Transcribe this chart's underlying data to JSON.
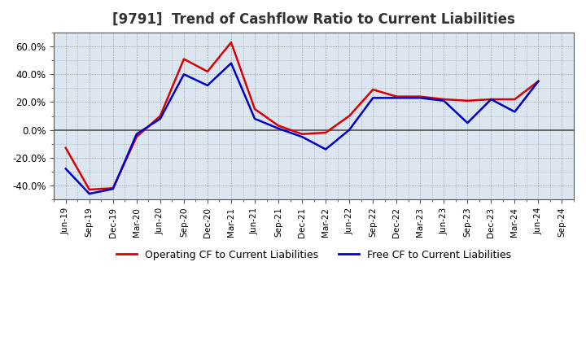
{
  "title": "[9791]  Trend of Cashflow Ratio to Current Liabilities",
  "x_labels": [
    "Jun-19",
    "Sep-19",
    "Dec-19",
    "Mar-20",
    "Jun-20",
    "Sep-20",
    "Dec-20",
    "Mar-21",
    "Jun-21",
    "Sep-21",
    "Dec-21",
    "Mar-22",
    "Jun-22",
    "Sep-22",
    "Dec-22",
    "Mar-23",
    "Jun-23",
    "Sep-23",
    "Dec-23",
    "Mar-24",
    "Jun-24",
    "Sep-24"
  ],
  "operating_cf": [
    -13.0,
    -43.0,
    -42.0,
    -5.0,
    10.0,
    51.0,
    42.0,
    63.0,
    15.0,
    3.0,
    -3.0,
    -2.0,
    10.0,
    29.0,
    24.0,
    24.0,
    22.0,
    21.0,
    22.0,
    22.0,
    35.0,
    null
  ],
  "free_cf": [
    -28.0,
    -46.0,
    -42.5,
    -3.0,
    8.0,
    40.0,
    32.0,
    48.0,
    8.0,
    1.0,
    -5.0,
    -14.0,
    0.0,
    23.0,
    23.0,
    23.0,
    21.0,
    5.0,
    22.0,
    13.0,
    35.0,
    null
  ],
  "ylim": [
    -50,
    70
  ],
  "yticks": [
    -40,
    -20,
    0,
    20,
    40,
    60
  ],
  "operating_color": "#dd0000",
  "free_color": "#0000cc",
  "background_color": "#ffffff",
  "plot_bg_color": "#dce6f0",
  "grid_color": "#888888",
  "zero_line_color": "#555555",
  "title_color": "#333333",
  "legend_labels": [
    "Operating CF to Current Liabilities",
    "Free CF to Current Liabilities"
  ]
}
